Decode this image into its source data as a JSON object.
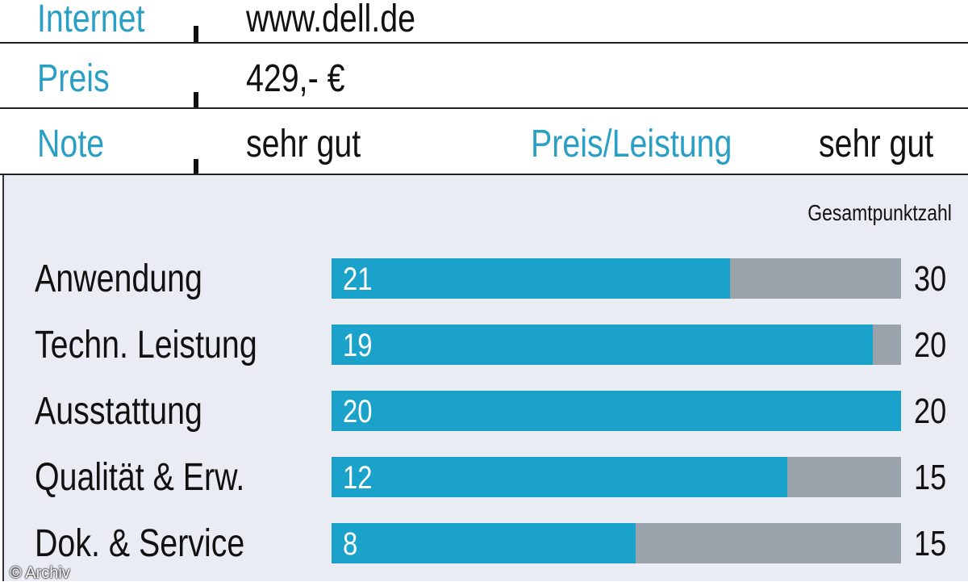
{
  "info": [
    {
      "label": "Internet",
      "value": "www.dell.de"
    },
    {
      "label": "Preis",
      "value": "429,- €"
    },
    {
      "label": "Note",
      "value": "sehr gut",
      "extra_label": "Preis/Leistung",
      "extra_value": "sehr gut"
    }
  ],
  "colors": {
    "accent": "#1ba2cb",
    "remainder": "#9aa3ab",
    "label": "#2a9fc6",
    "panel": "#e9edf3"
  },
  "credit": "© Archiv",
  "chart_data": {
    "type": "bar",
    "orientation": "horizontal",
    "total_header": "Gesamtpunktzahl",
    "categories": [
      "Anwendung",
      "Techn. Leistung",
      "Ausstattung",
      "Qualität & Erw.",
      "Dok. & Service"
    ],
    "values": [
      21,
      19,
      20,
      12,
      8
    ],
    "max_values": [
      30,
      20,
      20,
      15,
      15
    ]
  }
}
